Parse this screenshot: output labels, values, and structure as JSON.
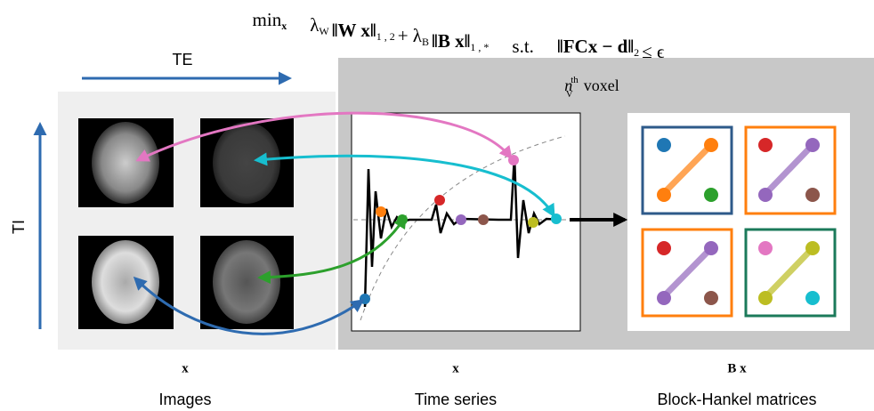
{
  "equation": [
    {
      "text": "min",
      "sub": "x"
    },
    {
      "text": "λ",
      "sub": "W"
    },
    {
      "text": "‖W x‖",
      "sub": "1 , 2"
    },
    {
      "text": "+ λ",
      "sub": "B"
    },
    {
      "text": "‖B x‖",
      "sub": "1 , *"
    },
    {
      "text": "s.t.",
      "sub": ""
    },
    {
      "text": "‖FCx − d‖",
      "sub": "2"
    },
    {
      "text": "≤ ϵ",
      "sub": ""
    }
  ],
  "te_label": "TE",
  "ti_label": "TI",
  "voxel": {
    "base": "n",
    "sup": "th",
    "sub": "V",
    "text": "voxel"
  },
  "panels": [
    {
      "symbol": "x",
      "caption": "Images"
    },
    {
      "symbol": "x",
      "caption": "Time series"
    },
    {
      "symbol": "B x",
      "caption": "Block-Hankel matrices"
    }
  ]
}
